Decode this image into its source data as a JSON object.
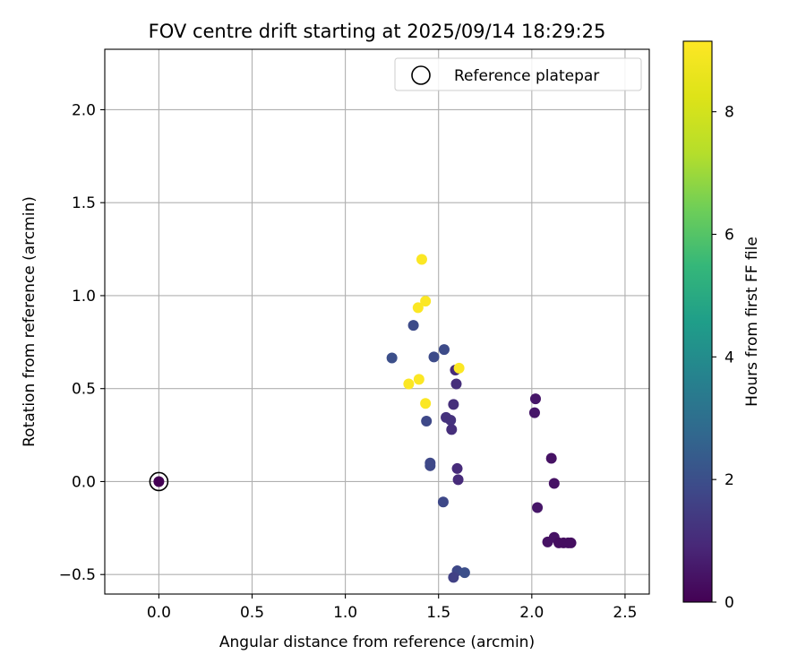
{
  "chart_data": {
    "type": "scatter",
    "title": "FOV centre drift starting at 2025/09/14 18:29:25",
    "xlabel": "Angular distance from reference (arcmin)",
    "ylabel": "Rotation from reference (arcmin)",
    "xlim": [
      -0.29,
      2.63
    ],
    "ylim": [
      -0.605,
      2.325
    ],
    "xticks": [
      0.0,
      0.5,
      1.0,
      1.5,
      2.0,
      2.5
    ],
    "xtick_labels": [
      "0.0",
      "0.5",
      "1.0",
      "1.5",
      "2.0",
      "2.5"
    ],
    "yticks": [
      -0.5,
      0.0,
      0.5,
      1.0,
      1.5,
      2.0
    ],
    "ytick_labels": [
      "−0.5",
      "0.0",
      "0.5",
      "1.0",
      "1.5",
      "2.0"
    ],
    "grid": true,
    "legend": {
      "position": "top-right",
      "entries": [
        {
          "label": "Reference platepar",
          "marker": "open-circle"
        }
      ]
    },
    "reference_point": {
      "x": 0.0,
      "y": 0.0
    },
    "colorbar": {
      "label": "Hours from first FF file",
      "colormap": "viridis",
      "range": [
        0,
        9.15
      ],
      "ticks": [
        0,
        2,
        4,
        6,
        8
      ],
      "tick_labels": [
        "0",
        "2",
        "4",
        "6",
        "8"
      ]
    },
    "points": [
      {
        "x": 0.0,
        "y": 0.0,
        "hours": 0.0
      },
      {
        "x": 2.02,
        "y": 0.445,
        "hours": 0.5
      },
      {
        "x": 2.015,
        "y": 0.37,
        "hours": 0.5
      },
      {
        "x": 2.105,
        "y": 0.125,
        "hours": 0.4
      },
      {
        "x": 2.12,
        "y": -0.01,
        "hours": 0.4
      },
      {
        "x": 2.03,
        "y": -0.14,
        "hours": 0.5
      },
      {
        "x": 2.085,
        "y": -0.325,
        "hours": 0.4
      },
      {
        "x": 2.12,
        "y": -0.3,
        "hours": 0.4
      },
      {
        "x": 2.145,
        "y": -0.33,
        "hours": 0.3
      },
      {
        "x": 2.17,
        "y": -0.33,
        "hours": 0.3
      },
      {
        "x": 2.195,
        "y": -0.33,
        "hours": 0.3
      },
      {
        "x": 2.21,
        "y": -0.33,
        "hours": 0.3
      },
      {
        "x": 1.59,
        "y": 0.6,
        "hours": 1.0
      },
      {
        "x": 1.595,
        "y": 0.525,
        "hours": 1.1
      },
      {
        "x": 1.58,
        "y": 0.415,
        "hours": 1.1
      },
      {
        "x": 1.54,
        "y": 0.345,
        "hours": 1.2
      },
      {
        "x": 1.565,
        "y": 0.33,
        "hours": 1.2
      },
      {
        "x": 1.57,
        "y": 0.28,
        "hours": 1.1
      },
      {
        "x": 1.6,
        "y": 0.07,
        "hours": 1.0
      },
      {
        "x": 1.605,
        "y": 0.01,
        "hours": 1.0
      },
      {
        "x": 1.53,
        "y": 0.71,
        "hours": 1.9
      },
      {
        "x": 1.475,
        "y": 0.67,
        "hours": 1.9
      },
      {
        "x": 1.365,
        "y": 0.84,
        "hours": 1.9
      },
      {
        "x": 1.25,
        "y": 0.665,
        "hours": 2.0
      },
      {
        "x": 1.435,
        "y": 0.325,
        "hours": 1.8
      },
      {
        "x": 1.455,
        "y": 0.1,
        "hours": 1.8
      },
      {
        "x": 1.455,
        "y": 0.085,
        "hours": 1.8
      },
      {
        "x": 1.525,
        "y": -0.11,
        "hours": 1.8
      },
      {
        "x": 1.6,
        "y": -0.48,
        "hours": 1.8
      },
      {
        "x": 1.64,
        "y": -0.49,
        "hours": 2.0
      },
      {
        "x": 1.58,
        "y": -0.515,
        "hours": 1.6
      },
      {
        "x": 1.41,
        "y": 1.195,
        "hours": 9.1
      },
      {
        "x": 1.43,
        "y": 0.97,
        "hours": 9.1
      },
      {
        "x": 1.39,
        "y": 0.935,
        "hours": 9.1
      },
      {
        "x": 1.395,
        "y": 0.55,
        "hours": 9.1
      },
      {
        "x": 1.34,
        "y": 0.525,
        "hours": 9.1
      },
      {
        "x": 1.61,
        "y": 0.61,
        "hours": 9.1
      },
      {
        "x": 1.43,
        "y": 0.42,
        "hours": 9.1
      }
    ]
  }
}
